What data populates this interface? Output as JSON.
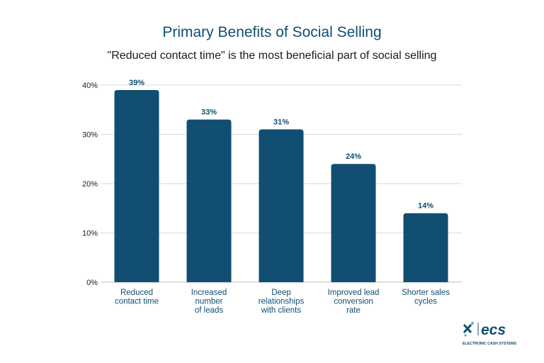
{
  "title": "Primary Benefits of Social Selling",
  "subtitle": "\"Reduced contact time\" is the most beneficial part of social selling",
  "logo": {
    "brand": "ecs",
    "tagline": "ELECTRONIC CASH SYSTEMS"
  },
  "colors": {
    "bar": "#114e72",
    "title": "#114e72",
    "grid": "#d9d9d9"
  },
  "chart_data": {
    "type": "bar",
    "categories": [
      [
        "Reduced",
        "contact time"
      ],
      [
        "Increased",
        "number",
        "of leads"
      ],
      [
        "Deep",
        "relationships",
        "with clients"
      ],
      [
        "Improved lead",
        "conversion",
        "rate"
      ],
      [
        "Shorter sales",
        "cycles"
      ]
    ],
    "values": [
      39,
      33,
      31,
      24,
      14
    ],
    "data_labels": [
      "39%",
      "33%",
      "31%",
      "24%",
      "14%"
    ],
    "yticks": [
      "0%",
      "10%",
      "20%",
      "30%",
      "40%"
    ],
    "ylim": [
      0,
      40
    ],
    "grid": true
  }
}
